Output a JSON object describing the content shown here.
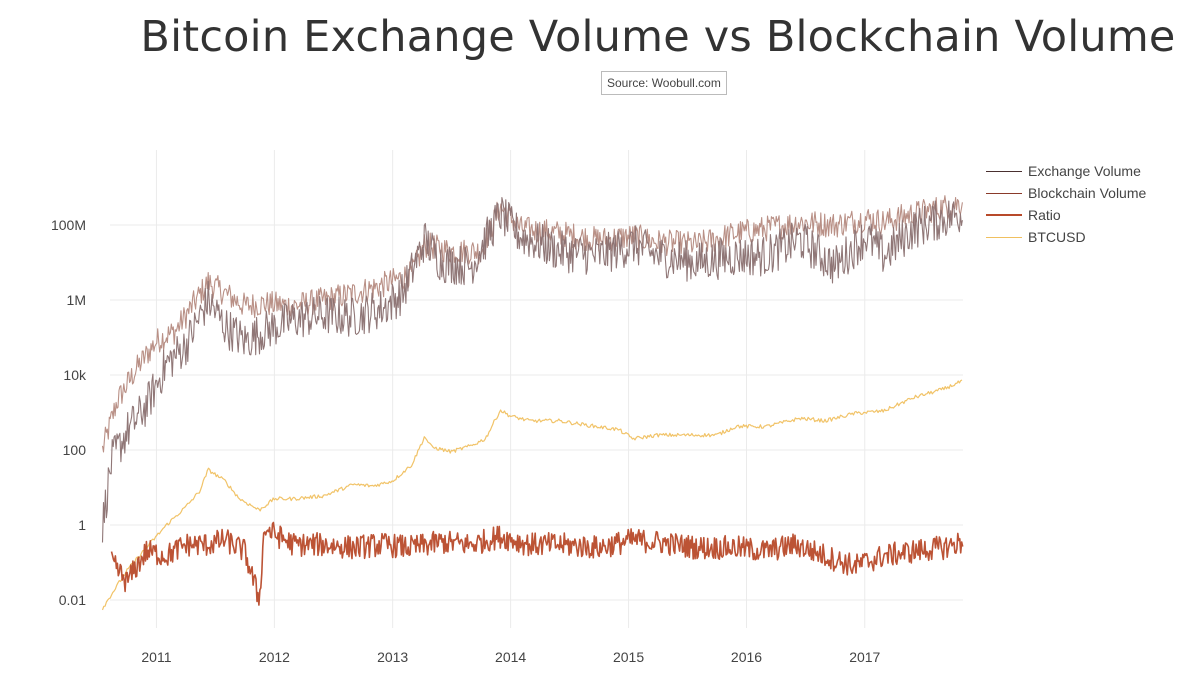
{
  "title": "Bitcoin Exchange Volume vs Blockchain Volume",
  "source_label": "Source: Woobull.com",
  "legend": [
    {
      "name": "Exchange Volume",
      "color": "#4a3030"
    },
    {
      "name": "Blockchain Volume",
      "color": "#8a3a2a"
    },
    {
      "name": "Ratio",
      "color": "#b84a2a"
    },
    {
      "name": "BTCUSD",
      "color": "#f0c060"
    }
  ],
  "chart_data": {
    "type": "line",
    "title": "Bitcoin Exchange Volume vs Blockchain Volume",
    "xlabel": "",
    "ylabel": "",
    "y_scale": "log",
    "xlim": [
      "2010-07",
      "2017-11"
    ],
    "ylim": [
      0.001,
      10000000000
    ],
    "x_ticks": [
      "2011",
      "2012",
      "2013",
      "2014",
      "2015",
      "2016",
      "2017"
    ],
    "y_ticks": [
      "0.01",
      "1",
      "100",
      "10k",
      "1M",
      "100M"
    ],
    "grid": true,
    "legend_position": "top-right",
    "series": [
      {
        "name": "Exchange Volume",
        "color": "#8a7070",
        "x": [
          "2010-07-18",
          "2010-08-15",
          "2010-10-01",
          "2010-12-01",
          "2011-02-01",
          "2011-04-01",
          "2011-06-10",
          "2011-08-01",
          "2011-10-01",
          "2011-12-01",
          "2012-03-01",
          "2012-06-01",
          "2012-09-01",
          "2012-12-01",
          "2013-02-01",
          "2013-04-10",
          "2013-06-01",
          "2013-09-01",
          "2013-11-30",
          "2014-02-01",
          "2014-06-01",
          "2014-10-01",
          "2015-01-15",
          "2015-04-01",
          "2015-08-01",
          "2015-12-01",
          "2016-03-01",
          "2016-06-15",
          "2016-10-01",
          "2017-01-05",
          "2017-03-01",
          "2017-06-01",
          "2017-09-01",
          "2017-11-01"
        ],
        "values": [
          1,
          50,
          300,
          1500,
          20000,
          60000,
          1000000,
          200000,
          80000,
          150000,
          300000,
          400000,
          350000,
          600000,
          1500000,
          40000000,
          10000000,
          8000000,
          200000000,
          50000000,
          20000000,
          15000000,
          30000000,
          15000000,
          10000000,
          15000000,
          15000000,
          40000000,
          8000000,
          50000000,
          15000000,
          80000000,
          150000000,
          200000000
        ]
      },
      {
        "name": "Blockchain Volume",
        "color": "#b58a80",
        "x": [
          "2010-07-18",
          "2010-09-01",
          "2010-11-01",
          "2011-01-01",
          "2011-03-01",
          "2011-06-10",
          "2011-08-01",
          "2011-10-01",
          "2011-12-01",
          "2012-03-01",
          "2012-06-01",
          "2012-09-01",
          "2012-12-01",
          "2013-03-01",
          "2013-04-10",
          "2013-07-01",
          "2013-10-01",
          "2013-11-30",
          "2014-02-01",
          "2014-06-01",
          "2014-10-01",
          "2015-01-15",
          "2015-04-01",
          "2015-08-01",
          "2015-12-01",
          "2016-03-01",
          "2016-06-15",
          "2016-10-01",
          "2017-01-05",
          "2017-03-01",
          "2017-06-01",
          "2017-09-01",
          "2017-11-01"
        ],
        "values": [
          100,
          2000,
          15000,
          80000,
          150000,
          3000000,
          1500000,
          700000,
          800000,
          700000,
          1000000,
          1500000,
          2500000,
          5000000,
          30000000,
          20000000,
          20000000,
          300000000,
          80000000,
          60000000,
          40000000,
          50000000,
          35000000,
          30000000,
          60000000,
          80000000,
          120000000,
          100000000,
          150000000,
          120000000,
          200000000,
          300000000,
          400000000
        ]
      },
      {
        "name": "Ratio",
        "color": "#b84a2a",
        "x": [
          "2010-08-15",
          "2010-10-01",
          "2010-12-01",
          "2011-02-01",
          "2011-04-01",
          "2011-06-10",
          "2011-08-01",
          "2011-10-01",
          "2011-11-15",
          "2011-12-01",
          "2012-03-01",
          "2012-06-01",
          "2012-09-01",
          "2012-12-01",
          "2013-03-01",
          "2013-06-01",
          "2013-09-01",
          "2013-11-30",
          "2014-03-01",
          "2014-06-01",
          "2014-10-01",
          "2015-01-15",
          "2015-04-01",
          "2015-08-01",
          "2015-12-01",
          "2016-03-01",
          "2016-06-01",
          "2016-10-01",
          "2016-12-01",
          "2017-03-01",
          "2017-06-01",
          "2017-09-01",
          "2017-11-01"
        ],
        "values": [
          0.1,
          0.03,
          0.2,
          0.15,
          0.3,
          0.3,
          0.4,
          0.2,
          0.01,
          0.8,
          0.3,
          0.3,
          0.25,
          0.3,
          0.25,
          0.35,
          0.3,
          0.5,
          0.3,
          0.3,
          0.25,
          0.4,
          0.35,
          0.25,
          0.25,
          0.2,
          0.3,
          0.12,
          0.08,
          0.15,
          0.2,
          0.25,
          0.35
        ]
      },
      {
        "name": "BTCUSD",
        "color": "#f0c060",
        "x": [
          "2010-07-18",
          "2010-10-01",
          "2010-12-01",
          "2011-02-01",
          "2011-04-01",
          "2011-05-15",
          "2011-06-10",
          "2011-08-01",
          "2011-09-15",
          "2011-11-15",
          "2012-01-01",
          "2012-03-01",
          "2012-06-01",
          "2012-09-01",
          "2012-11-01",
          "2013-01-01",
          "2013-03-01",
          "2013-04-10",
          "2013-05-01",
          "2013-07-01",
          "2013-09-01",
          "2013-10-15",
          "2013-11-30",
          "2014-01-01",
          "2014-03-01",
          "2014-06-01",
          "2014-09-01",
          "2014-12-01",
          "2015-01-15",
          "2015-04-01",
          "2015-08-01",
          "2015-10-01",
          "2015-12-01",
          "2016-03-01",
          "2016-06-15",
          "2016-09-01",
          "2016-12-01",
          "2017-03-01",
          "2017-06-01",
          "2017-09-01",
          "2017-11-01"
        ],
        "values": [
          0.006,
          0.06,
          0.25,
          1,
          3,
          8,
          30,
          15,
          5,
          2.5,
          5,
          5,
          6,
          12,
          11,
          15,
          40,
          230,
          120,
          90,
          130,
          200,
          1150,
          800,
          600,
          600,
          450,
          350,
          200,
          250,
          250,
          250,
          430,
          420,
          700,
          600,
          950,
          1100,
          2500,
          4200,
          7000
        ]
      }
    ]
  }
}
